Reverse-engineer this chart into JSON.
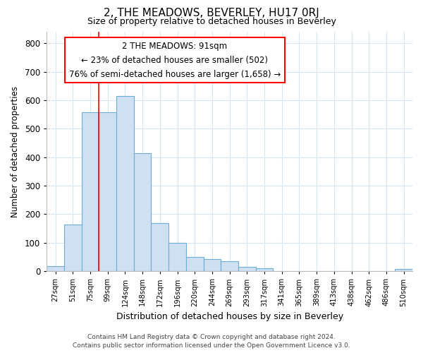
{
  "title": "2, THE MEADOWS, BEVERLEY, HU17 0RJ",
  "subtitle": "Size of property relative to detached houses in Beverley",
  "xlabel": "Distribution of detached houses by size in Beverley",
  "ylabel": "Number of detached properties",
  "bar_color": "#cfe0f3",
  "bar_edge_color": "#6aaed6",
  "categories": [
    "27sqm",
    "51sqm",
    "75sqm",
    "99sqm",
    "124sqm",
    "148sqm",
    "172sqm",
    "196sqm",
    "220sqm",
    "244sqm",
    "269sqm",
    "293sqm",
    "317sqm",
    "341sqm",
    "365sqm",
    "389sqm",
    "413sqm",
    "438sqm",
    "462sqm",
    "486sqm",
    "510sqm"
  ],
  "values": [
    18,
    165,
    558,
    558,
    615,
    413,
    170,
    100,
    50,
    42,
    35,
    15,
    10,
    0,
    0,
    0,
    0,
    0,
    0,
    0,
    8
  ],
  "ylim": [
    0,
    840
  ],
  "yticks": [
    0,
    100,
    200,
    300,
    400,
    500,
    600,
    700,
    800
  ],
  "red_line_x": 2.5,
  "annotation_title": "2 THE MEADOWS: 91sqm",
  "annotation_line1": "← 23% of detached houses are smaller (502)",
  "annotation_line2": "76% of semi-detached houses are larger (1,658) →",
  "annotation_box_color": "white",
  "annotation_box_edge": "red",
  "footer_line1": "Contains HM Land Registry data © Crown copyright and database right 2024.",
  "footer_line2": "Contains public sector information licensed under the Open Government Licence v3.0.",
  "background_color": "white",
  "grid_color": "#d8e4f0"
}
